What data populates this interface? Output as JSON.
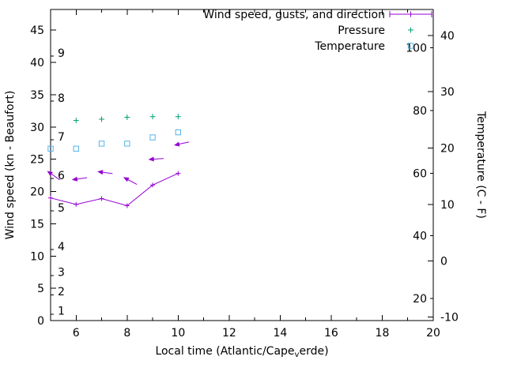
{
  "window": {
    "background": "#ffffff"
  },
  "chart_data": {
    "type": "line",
    "title": "",
    "grid": false,
    "legend_position": "top-right-inside",
    "x_axis": {
      "label": "Local time (Atlantic/Cape_verde)",
      "label_parts": {
        "prefix": "Local time (Atlantic/Cape",
        "subscript": "v",
        "suffix": "erde)"
      },
      "min": 5,
      "max": 20,
      "major_ticks": [
        6,
        8,
        10,
        12,
        14,
        16,
        18,
        20
      ],
      "minor_ticks": [
        5,
        7,
        9,
        11,
        13,
        15,
        17,
        19
      ]
    },
    "y_left_axis": {
      "label": "Wind speed (kn - Beaufort)",
      "min": 0,
      "max": 48.2,
      "major_ticks": [
        0,
        5,
        10,
        15,
        20,
        25,
        30,
        35,
        40,
        45
      ],
      "beaufort_boundary_ticks_kn": [
        1,
        4,
        7,
        11,
        17,
        22,
        28,
        34,
        41
      ],
      "beaufort_scale_labels": [
        {
          "beaufort": 1,
          "kn": 1.5
        },
        {
          "beaufort": 2,
          "kn": 4.5
        },
        {
          "beaufort": 3,
          "kn": 7.5
        },
        {
          "beaufort": 4,
          "kn": 11.5
        },
        {
          "beaufort": 5,
          "kn": 17.5
        },
        {
          "beaufort": 6,
          "kn": 22.5
        },
        {
          "beaufort": 7,
          "kn": 28.5
        },
        {
          "beaufort": 8,
          "kn": 34.5
        },
        {
          "beaufort": 9,
          "kn": 41.5
        }
      ]
    },
    "y_right_axis": {
      "label": "Temperature (C - F)",
      "min_c": -10.6,
      "max_c": 44.6,
      "major_ticks_c": [
        -10,
        0,
        10,
        20,
        30,
        40
      ],
      "fahrenheit_labels": [
        20,
        40,
        60,
        80,
        100
      ]
    },
    "legend": {
      "entries": [
        {
          "label": "Wind speed, gusts, and direction",
          "marker": "errorbar-plus",
          "color": "#9400d3"
        },
        {
          "label": "Pressure",
          "marker": "plus",
          "color": "#009e73"
        },
        {
          "label": "Temperature",
          "marker": "open-square",
          "color": "#56b4e9"
        }
      ]
    },
    "series": [
      {
        "name": "Wind speed",
        "axis": "left",
        "unit": "kn",
        "color": "#9400d3",
        "style": "line-plus",
        "x": [
          5,
          6,
          7,
          8,
          9,
          10
        ],
        "y": [
          19,
          18,
          18.9,
          17.8,
          21,
          22.8
        ]
      },
      {
        "name": "Wind gusts and direction",
        "axis": "left",
        "unit": "kn",
        "color": "#9400d3",
        "style": "direction-vectors",
        "x": [
          5,
          6,
          7,
          8,
          9,
          10
        ],
        "y": [
          22.8,
          21.9,
          23,
          21.9,
          25,
          27.3
        ],
        "direction_deg": [
          -35,
          8,
          -8,
          -28,
          4,
          12
        ]
      },
      {
        "name": "Pressure",
        "axis": "left",
        "unit": "plot-units (no visible pressure axis)",
        "color": "#009e73",
        "style": "plus-points",
        "x": [
          6,
          7,
          8,
          9,
          10
        ],
        "y": [
          31,
          31.2,
          31.5,
          31.6,
          31.6
        ]
      },
      {
        "name": "Temperature",
        "axis": "right",
        "unit": "C",
        "color": "#56b4e9",
        "style": "square-points",
        "x": [
          5,
          6,
          7,
          8,
          9,
          10
        ],
        "y": [
          19.9,
          19.9,
          20.8,
          20.8,
          21.9,
          22.8
        ]
      }
    ]
  }
}
